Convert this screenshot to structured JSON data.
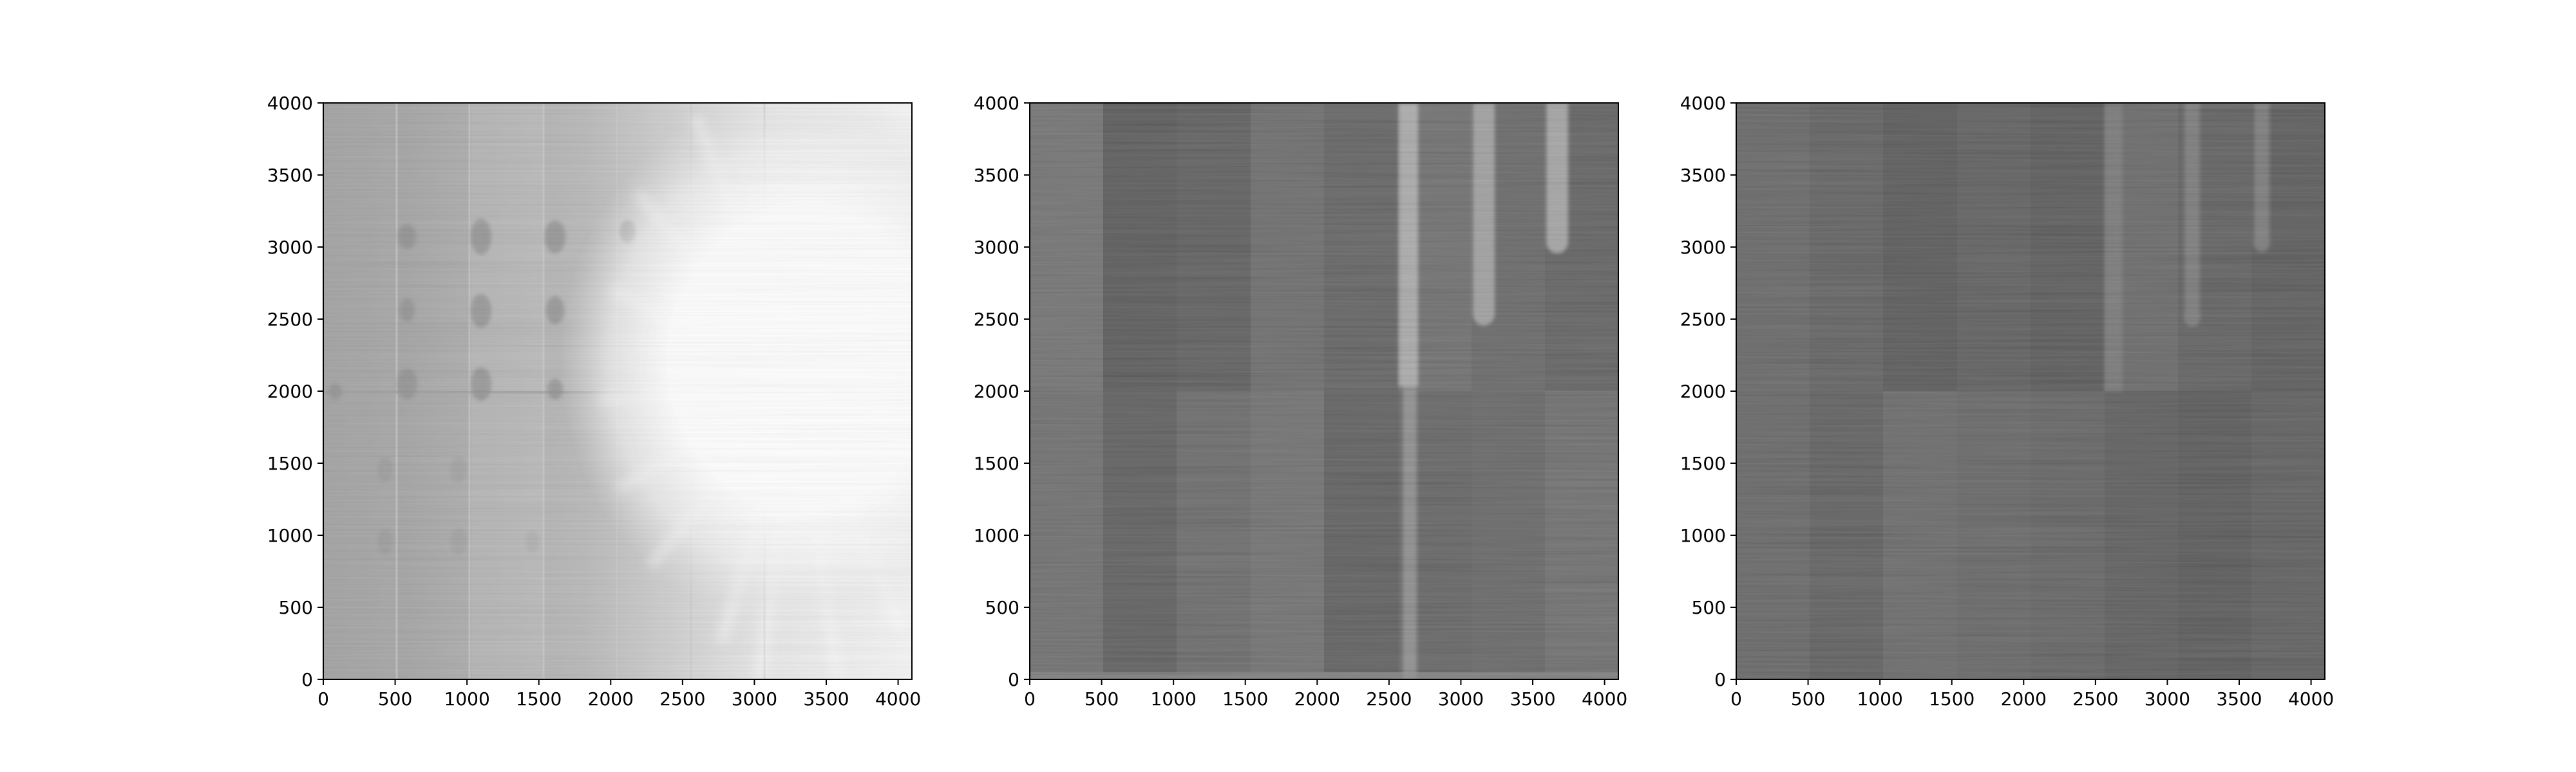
{
  "chart_data": [
    {
      "type": "heatmap",
      "title": "",
      "xlabel": "",
      "ylabel": "",
      "xlim": [
        0,
        4096
      ],
      "ylim": [
        0,
        4000
      ],
      "xticks": [
        "0",
        "500",
        "1000",
        "1500",
        "2000",
        "2500",
        "3000",
        "3500",
        "4000"
      ],
      "yticks": [
        "0",
        "500",
        "1000",
        "1500",
        "2000",
        "2500",
        "3000",
        "3500",
        "4000"
      ],
      "colormap": "gray",
      "features": {
        "description_hidden": true,
        "bright_saturated_region_center": [
          2750,
          1950
        ],
        "column_boundaries": [
          512,
          1024,
          1536,
          2048,
          2560,
          3072,
          3584
        ],
        "row_boundary": 2000
      }
    },
    {
      "type": "heatmap",
      "title": "",
      "xlabel": "",
      "ylabel": "",
      "xlim": [
        0,
        4096
      ],
      "ylim": [
        0,
        4000
      ],
      "xticks": [
        "0",
        "500",
        "1000",
        "1500",
        "2000",
        "2500",
        "3000",
        "3500",
        "4000"
      ],
      "yticks": [
        "0",
        "500",
        "1000",
        "1500",
        "2000",
        "2500",
        "3000",
        "3500",
        "4000"
      ],
      "colormap": "gray",
      "features": {
        "bright_columns": [
          [
            2600,
            2720,
            0,
            4000
          ],
          [
            3090,
            3240,
            2450,
            4000
          ],
          [
            3600,
            3760,
            2950,
            4000
          ]
        ],
        "column_boundaries": [
          512,
          1024,
          1536,
          2048,
          2560,
          3072,
          3584
        ],
        "row_boundary": 2000
      }
    },
    {
      "type": "heatmap",
      "title": "",
      "xlabel": "",
      "ylabel": "",
      "xlim": [
        0,
        4096
      ],
      "ylim": [
        0,
        4000
      ],
      "xticks": [
        "0",
        "500",
        "1000",
        "1500",
        "2000",
        "2500",
        "3000",
        "3500",
        "4000"
      ],
      "yticks": [
        "0",
        "500",
        "1000",
        "1500",
        "2000",
        "2500",
        "3000",
        "3500",
        "4000"
      ],
      "colormap": "gray",
      "features": {
        "bright_columns": [
          [
            2570,
            2700,
            2000,
            4000
          ],
          [
            3120,
            3240,
            2450,
            4000
          ],
          [
            3600,
            3720,
            2950,
            4000
          ]
        ],
        "column_boundaries": [
          512,
          1024,
          1536,
          2048,
          2560,
          3072,
          3584
        ],
        "row_boundary": 2000
      }
    }
  ]
}
